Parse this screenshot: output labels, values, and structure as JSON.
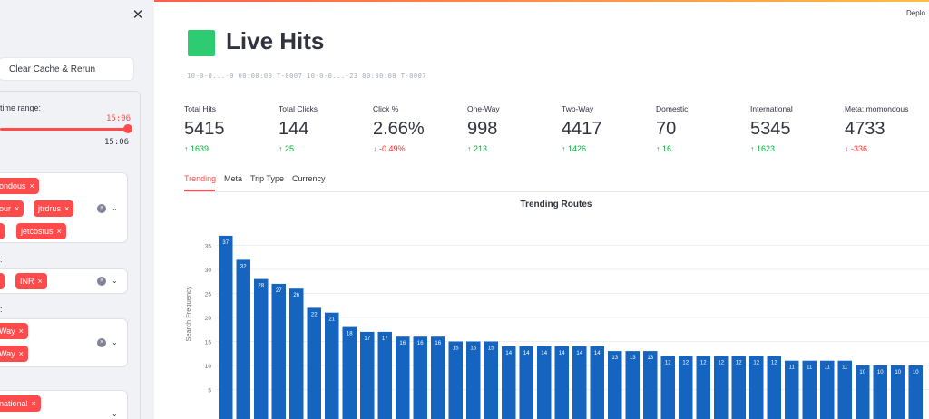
{
  "sidebar": {
    "close_icon": "close-icon",
    "clear_cache_label": "Clear Cache & Rerun",
    "time_range_label": "time range:",
    "slider_value": "15:06",
    "slider_max": "15:06",
    "filter1": {
      "chips": [
        "ondous",
        "our",
        "jtrdrus",
        "jetcostus"
      ]
    },
    "filter2": {
      "label": ":",
      "chips": [
        "INR"
      ]
    },
    "filter3": {
      "label": ":",
      "chips": [
        "Way",
        "Way"
      ]
    },
    "filter4": {
      "chips": [
        "national"
      ]
    }
  },
  "header": {
    "deploy_label": "Deplo",
    "title": "Live Hits",
    "title_icon": "green-square-icon",
    "subtitle": "10-0-0...-0 00:00:00 T-0007   10-0-0...-23 00:00:00 T-0007"
  },
  "metrics": [
    {
      "label": "Total Hits",
      "value": "5415",
      "delta": "1639",
      "dir": "up"
    },
    {
      "label": "Total Clicks",
      "value": "144",
      "delta": "25",
      "dir": "up"
    },
    {
      "label": "Click %",
      "value": "2.66%",
      "delta": "-0.49%",
      "dir": "down"
    },
    {
      "label": "One-Way",
      "value": "998",
      "delta": "213",
      "dir": "up"
    },
    {
      "label": "Two-Way",
      "value": "4417",
      "delta": "1426",
      "dir": "up"
    },
    {
      "label": "Domestic",
      "value": "70",
      "delta": "16",
      "dir": "up"
    },
    {
      "label": "International",
      "value": "5345",
      "delta": "1623",
      "dir": "up"
    },
    {
      "label": "Meta: momondous",
      "value": "4733",
      "delta": "-336",
      "dir": "down"
    }
  ],
  "tabs": [
    "Trending",
    "Meta",
    "Trip Type",
    "Currency"
  ],
  "colors": {
    "accent": "#ff4b4b",
    "bar": "#1565c0",
    "up": "#09ab3b",
    "down": "#ff2b2b"
  },
  "chart_data": {
    "type": "bar",
    "title": "Trending Routes",
    "ylabel": "Search Frequency",
    "yticks": [
      5,
      10,
      15,
      20,
      25,
      30,
      35
    ],
    "ylim": [
      0,
      40
    ],
    "values": [
      37,
      32,
      28,
      27,
      26,
      22,
      21,
      18,
      17,
      17,
      16,
      16,
      16,
      15,
      15,
      15,
      14,
      14,
      14,
      14,
      14,
      14,
      13,
      13,
      13,
      12,
      12,
      12,
      12,
      12,
      12,
      12,
      11,
      11,
      11,
      11,
      10,
      10,
      10,
      10
    ],
    "grid": true
  }
}
